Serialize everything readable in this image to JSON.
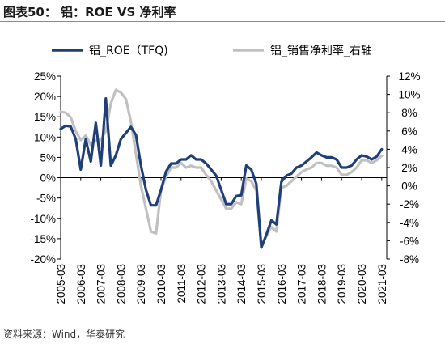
{
  "figure": {
    "title": "图表50：  铝：ROE VS  净利率",
    "source": "资料来源：Wind，华泰研究"
  },
  "chart_data": {
    "type": "line",
    "x_categories": [
      "2005-03",
      "2006-03",
      "2007-03",
      "2008-03",
      "2009-03",
      "2010-03",
      "2011-03",
      "2012-03",
      "2013-03",
      "2014-03",
      "2015-03",
      "2016-03",
      "2017-03",
      "2018-03",
      "2019-03",
      "2020-03",
      "2021-03"
    ],
    "x_range": [
      2005.0,
      2021.25
    ],
    "left_axis": {
      "ticks": [
        "25%",
        "20%",
        "15%",
        "10%",
        "5%",
        "0%",
        "-5%",
        "-10%",
        "-15%",
        "-20%"
      ],
      "range": [
        -0.2,
        0.25
      ]
    },
    "right_axis": {
      "ticks": [
        "12%",
        "10%",
        "8%",
        "6%",
        "4%",
        "2%",
        "0%",
        "-2%",
        "-4%",
        "-6%",
        "-8%"
      ],
      "range": [
        -0.08,
        0.12
      ]
    },
    "grid": false,
    "legend_position": "top",
    "series": [
      {
        "name": "铝_ROE（TFQ)",
        "axis": "left",
        "color": "#1f3f7a",
        "points": [
          [
            2005.0,
            0.12
          ],
          [
            2005.25,
            0.128
          ],
          [
            2005.5,
            0.126
          ],
          [
            2005.75,
            0.095
          ],
          [
            2006.0,
            0.02
          ],
          [
            2006.25,
            0.095
          ],
          [
            2006.5,
            0.04
          ],
          [
            2006.75,
            0.135
          ],
          [
            2007.0,
            0.03
          ],
          [
            2007.25,
            0.195
          ],
          [
            2007.5,
            0.03
          ],
          [
            2007.75,
            0.055
          ],
          [
            2008.0,
            0.095
          ],
          [
            2008.25,
            0.11
          ],
          [
            2008.5,
            0.125
          ],
          [
            2008.75,
            0.105
          ],
          [
            2009.0,
            0.03
          ],
          [
            2009.25,
            -0.03
          ],
          [
            2009.5,
            -0.068
          ],
          [
            2009.75,
            -0.068
          ],
          [
            2010.0,
            -0.03
          ],
          [
            2010.25,
            0.015
          ],
          [
            2010.5,
            0.035
          ],
          [
            2010.75,
            0.035
          ],
          [
            2011.0,
            0.045
          ],
          [
            2011.25,
            0.045
          ],
          [
            2011.5,
            0.055
          ],
          [
            2011.75,
            0.045
          ],
          [
            2012.0,
            0.045
          ],
          [
            2012.25,
            0.035
          ],
          [
            2012.5,
            0.02
          ],
          [
            2012.75,
            0.005
          ],
          [
            2013.0,
            -0.03
          ],
          [
            2013.25,
            -0.065
          ],
          [
            2013.5,
            -0.065
          ],
          [
            2013.75,
            -0.045
          ],
          [
            2014.0,
            -0.043
          ],
          [
            2014.25,
            0.03
          ],
          [
            2014.5,
            0.02
          ],
          [
            2014.75,
            -0.015
          ],
          [
            2015.0,
            -0.172
          ],
          [
            2015.25,
            -0.14
          ],
          [
            2015.5,
            -0.105
          ],
          [
            2015.75,
            -0.115
          ],
          [
            2016.0,
            -0.01
          ],
          [
            2016.25,
            0.005
          ],
          [
            2016.5,
            0.01
          ],
          [
            2016.75,
            0.025
          ],
          [
            2017.0,
            0.03
          ],
          [
            2017.25,
            0.04
          ],
          [
            2017.5,
            0.05
          ],
          [
            2017.75,
            0.062
          ],
          [
            2018.0,
            0.055
          ],
          [
            2018.25,
            0.05
          ],
          [
            2018.5,
            0.05
          ],
          [
            2018.75,
            0.045
          ],
          [
            2019.0,
            0.025
          ],
          [
            2019.25,
            0.025
          ],
          [
            2019.5,
            0.03
          ],
          [
            2019.75,
            0.045
          ],
          [
            2020.0,
            0.055
          ],
          [
            2020.25,
            0.052
          ],
          [
            2020.5,
            0.045
          ],
          [
            2020.75,
            0.052
          ],
          [
            2021.0,
            0.07
          ]
        ]
      },
      {
        "name": "铝_销售净利率_右轴",
        "axis": "right",
        "color": "#c0c0c0",
        "points": [
          [
            2005.0,
            0.081
          ],
          [
            2005.25,
            0.08
          ],
          [
            2005.5,
            0.075
          ],
          [
            2005.75,
            0.06
          ],
          [
            2006.0,
            0.05
          ],
          [
            2006.25,
            0.055
          ],
          [
            2006.5,
            0.045
          ],
          [
            2006.75,
            0.05
          ],
          [
            2007.0,
            0.05
          ],
          [
            2007.25,
            0.06
          ],
          [
            2007.5,
            0.09
          ],
          [
            2007.75,
            0.105
          ],
          [
            2008.0,
            0.102
          ],
          [
            2008.25,
            0.095
          ],
          [
            2008.5,
            0.07
          ],
          [
            2008.75,
            0.035
          ],
          [
            2009.0,
            0.0
          ],
          [
            2009.25,
            -0.025
          ],
          [
            2009.5,
            -0.05
          ],
          [
            2009.75,
            -0.052
          ],
          [
            2010.0,
            -0.005
          ],
          [
            2010.25,
            0.01
          ],
          [
            2010.5,
            0.02
          ],
          [
            2010.75,
            0.02
          ],
          [
            2011.0,
            0.025
          ],
          [
            2011.25,
            0.02
          ],
          [
            2011.5,
            0.022
          ],
          [
            2011.75,
            0.02
          ],
          [
            2012.0,
            0.02
          ],
          [
            2012.25,
            0.012
          ],
          [
            2012.5,
            0.005
          ],
          [
            2012.75,
            -0.005
          ],
          [
            2013.0,
            -0.015
          ],
          [
            2013.25,
            -0.025
          ],
          [
            2013.5,
            -0.025
          ],
          [
            2013.75,
            -0.018
          ],
          [
            2014.0,
            -0.02
          ],
          [
            2014.25,
            0.008
          ],
          [
            2014.5,
            0.005
          ],
          [
            2014.75,
            -0.005
          ],
          [
            2015.0,
            -0.065
          ],
          [
            2015.25,
            -0.055
          ],
          [
            2015.5,
            -0.045
          ],
          [
            2015.75,
            -0.05
          ],
          [
            2016.0,
            -0.002
          ],
          [
            2016.25,
            0.0
          ],
          [
            2016.5,
            0.005
          ],
          [
            2016.75,
            0.01
          ],
          [
            2017.0,
            0.015
          ],
          [
            2017.25,
            0.018
          ],
          [
            2017.5,
            0.02
          ],
          [
            2017.75,
            0.025
          ],
          [
            2018.0,
            0.025
          ],
          [
            2018.25,
            0.022
          ],
          [
            2018.5,
            0.022
          ],
          [
            2018.75,
            0.02
          ],
          [
            2019.0,
            0.012
          ],
          [
            2019.25,
            0.012
          ],
          [
            2019.5,
            0.015
          ],
          [
            2019.75,
            0.02
          ],
          [
            2020.0,
            0.028
          ],
          [
            2020.25,
            0.028
          ],
          [
            2020.5,
            0.025
          ],
          [
            2020.75,
            0.028
          ],
          [
            2021.0,
            0.033
          ]
        ]
      }
    ]
  }
}
